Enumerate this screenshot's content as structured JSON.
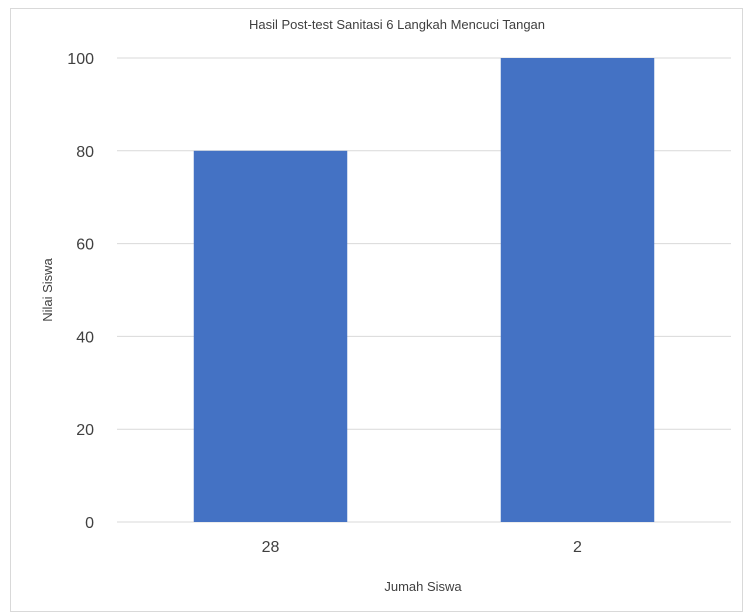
{
  "chart_data": {
    "type": "bar",
    "title": "Hasil Post-test Sanitasi 6 Langkah Mencuci Tangan",
    "xlabel": "Jumah Siswa",
    "ylabel": "Nilai Siswa",
    "categories": [
      "28",
      "2"
    ],
    "values": [
      80,
      100
    ],
    "ylim": [
      0,
      100
    ],
    "yticks": [
      "0",
      "20",
      "40",
      "60",
      "80",
      "100"
    ],
    "grid": true,
    "bar_color": "#4472C4",
    "grid_color": "#d9d9d9"
  }
}
